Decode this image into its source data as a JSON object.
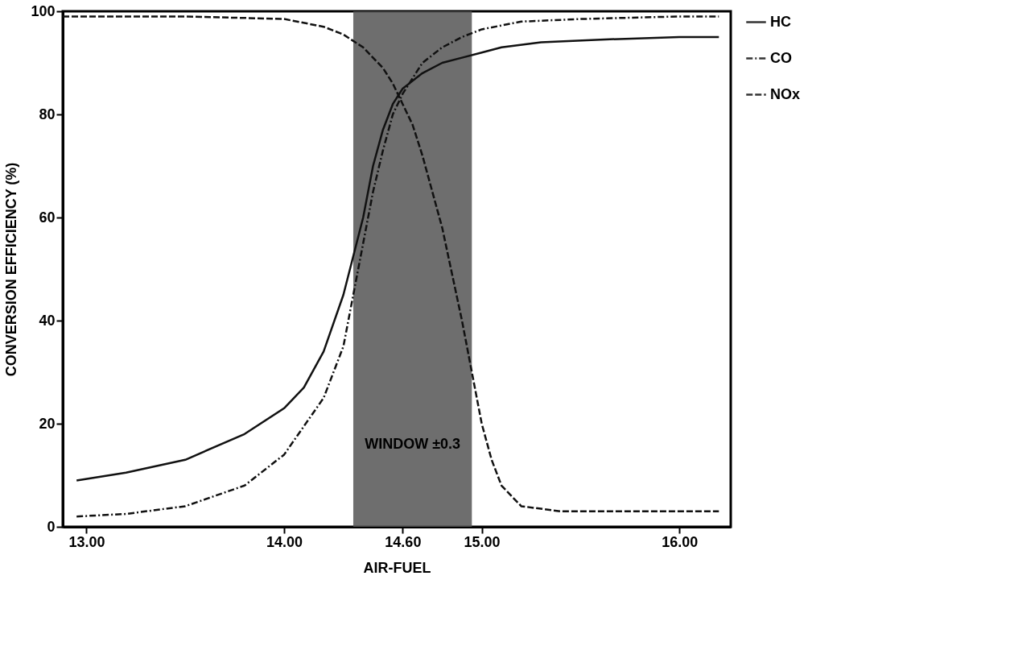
{
  "chart_data": {
    "type": "line",
    "xlabel": "AIR-FUEL",
    "ylabel": "CONVERSION EFFICIENCY (%)",
    "xlim": [
      12.88,
      16.26
    ],
    "ylim": [
      0,
      100
    ],
    "xticks": [
      {
        "value": 13,
        "label": "13.00"
      },
      {
        "value": 14,
        "label": "14.00"
      },
      {
        "value": 14.6,
        "label": "14.60"
      },
      {
        "value": 15,
        "label": "15.00"
      },
      {
        "value": 16,
        "label": "16.00"
      }
    ],
    "yticks": [
      0,
      20,
      40,
      60,
      80,
      100
    ],
    "grid": false,
    "legend": "right",
    "marker": "none",
    "bands": [
      {
        "axis": "x",
        "from": 14.35,
        "to": 14.95,
        "label": "WINDOW ±0.3",
        "color": "#555555"
      }
    ],
    "series": [
      {
        "name": "HC",
        "color": "#111111",
        "line_style": "solid",
        "x": [
          12.95,
          13.2,
          13.5,
          13.8,
          14.0,
          14.1,
          14.2,
          14.3,
          14.4,
          14.45,
          14.5,
          14.55,
          14.6,
          14.7,
          14.8,
          14.9,
          15.0,
          15.1,
          15.3,
          15.6,
          16.0,
          16.2
        ],
        "values": [
          9,
          10.5,
          13,
          18,
          23,
          27,
          34,
          45,
          60,
          70,
          77,
          82,
          85,
          88,
          90,
          91,
          92,
          93,
          94,
          94.5,
          95,
          95
        ]
      },
      {
        "name": "CO",
        "color": "#111111",
        "line_style": "dashdot",
        "x": [
          12.95,
          13.2,
          13.5,
          13.8,
          14.0,
          14.2,
          14.3,
          14.35,
          14.4,
          14.45,
          14.5,
          14.55,
          14.6,
          14.7,
          14.8,
          14.9,
          15.0,
          15.2,
          15.5,
          16.0,
          16.2
        ],
        "values": [
          2,
          2.5,
          4,
          8,
          14,
          25,
          35,
          45,
          55,
          65,
          73,
          80,
          84,
          90,
          93,
          95,
          96.5,
          98,
          98.5,
          99,
          99
        ]
      },
      {
        "name": "NOx",
        "color": "#111111",
        "line_style": "dashed",
        "x": [
          12.88,
          13.5,
          14.0,
          14.2,
          14.3,
          14.4,
          14.5,
          14.55,
          14.6,
          14.65,
          14.7,
          14.8,
          14.9,
          14.95,
          15.0,
          15.05,
          15.1,
          15.2,
          15.4,
          15.8,
          16.2
        ],
        "values": [
          99,
          99,
          98.5,
          97,
          95.5,
          93,
          89,
          86,
          82,
          78,
          72,
          58,
          40,
          30,
          20,
          13,
          8,
          4,
          3,
          3,
          3
        ]
      }
    ]
  }
}
